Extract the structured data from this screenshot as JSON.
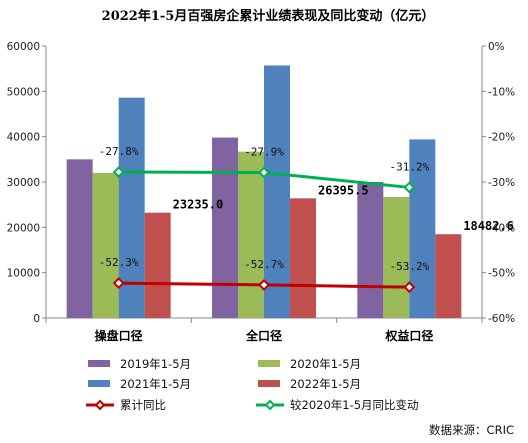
{
  "chart_data": {
    "type": "bar",
    "title": "2022年1-5月百强房企累计业绩表现及同比变动（亿元）",
    "categories": [
      "操盘口径",
      "全口径",
      "权益口径"
    ],
    "y_left": {
      "ylim": [
        0,
        60000
      ],
      "ticks": [
        "0",
        "10000",
        "20000",
        "30000",
        "40000",
        "50000",
        "60000"
      ]
    },
    "y_right": {
      "ylim": [
        -60,
        0
      ],
      "ticks": [
        "-60%",
        "-50%",
        "-40%",
        "-30%",
        "-20%",
        "-10%",
        "0%"
      ]
    },
    "grid": false,
    "legend_position": "bottom",
    "series": [
      {
        "name": "2019年1-5月",
        "color": "#8064A2",
        "values": [
          35000,
          39800,
          30000
        ]
      },
      {
        "name": "2020年1-5月",
        "color": "#9BBB59",
        "values": [
          32000,
          36700,
          26700
        ]
      },
      {
        "name": "2021年1-5月",
        "color": "#4F81BD",
        "values": [
          48600,
          55700,
          39400
        ]
      },
      {
        "name": "2022年1-5月",
        "color": "#C0504D",
        "values": [
          23235.0,
          26395.5,
          18482.6
        ],
        "labels": [
          "23235.0",
          "26395.5",
          "18482.6"
        ]
      }
    ],
    "lines": [
      {
        "name": "累计同比",
        "color": "#C00000",
        "axis": "right",
        "values": [
          -52.3,
          -52.7,
          -53.2
        ],
        "labels": [
          "-52.3%",
          "-52.7%",
          "-53.2%"
        ]
      },
      {
        "name": "较2020年1-5月同比变动",
        "color": "#00B050",
        "axis": "right",
        "values": [
          -27.8,
          -27.9,
          -31.2
        ],
        "labels": [
          "-27.8%",
          "-27.9%",
          "-31.2%"
        ]
      }
    ]
  },
  "source": "数据来源：CRIC"
}
